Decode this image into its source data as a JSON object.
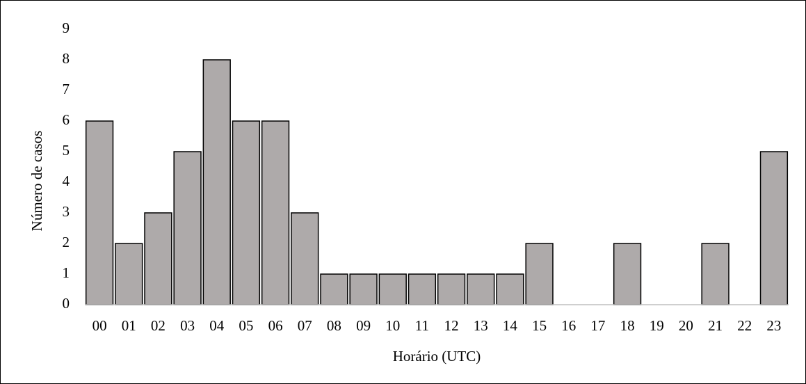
{
  "chart_data": {
    "type": "bar",
    "xlabel": "Horário (UTC)",
    "ylabel": "Número de casos",
    "categories": [
      "00",
      "01",
      "02",
      "03",
      "04",
      "05",
      "06",
      "07",
      "08",
      "09",
      "10",
      "11",
      "12",
      "13",
      "14",
      "15",
      "16",
      "17",
      "18",
      "19",
      "20",
      "21",
      "22",
      "23"
    ],
    "values": [
      6,
      2,
      3,
      5,
      8,
      6,
      6,
      3,
      1,
      1,
      1,
      1,
      1,
      1,
      1,
      2,
      0,
      0,
      2,
      0,
      0,
      2,
      0,
      5
    ],
    "color": "#aeaaaa",
    "ylim": [
      0,
      9
    ],
    "yticks": [
      0,
      1,
      2,
      3,
      4,
      5,
      6,
      7,
      8,
      9
    ],
    "grid": false
  }
}
